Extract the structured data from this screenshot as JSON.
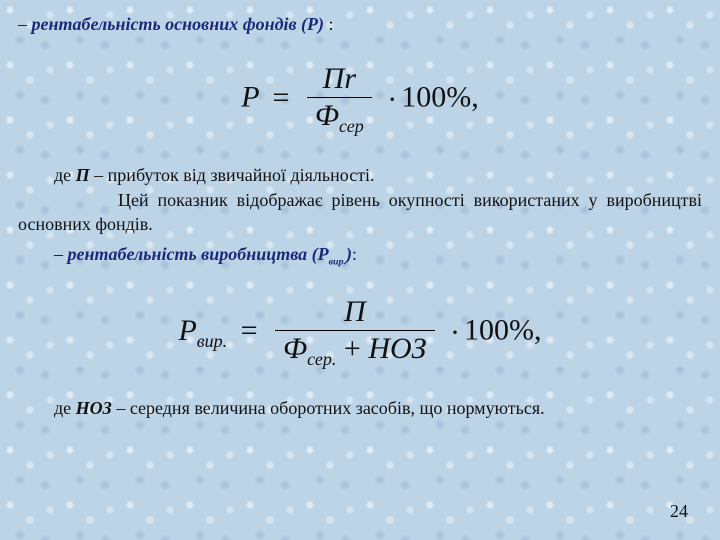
{
  "background_color": "#bcd4e6",
  "text_color": "#111111",
  "heading_color": "#1a2a7a",
  "font_family": "Times New Roman",
  "body_fontsize_pt": 14,
  "formula_fontsize_pt": 22,
  "page_number": "24",
  "section1": {
    "heading_prefix": "– ",
    "heading_text": "рентабельність основних фондів (Р)",
    "heading_colon": " :",
    "formula": {
      "lhs": "P",
      "numerator": "Пr",
      "denominator_main": "Ф",
      "denominator_sub": "сер",
      "multiplier": "100%,",
      "dot": "·"
    },
    "desc_line1_pre": "де ",
    "desc_line1_bold": "П",
    "desc_line1_post": " – прибуток від звичайної діяльності.",
    "desc_para": "Цей показник відображає рівень окупності використаних у виробництві основних фондів."
  },
  "section2": {
    "heading_prefix": "– ",
    "heading_text_part1": "рентабельність виробництва (Р",
    "heading_text_sub": "вир.",
    "heading_text_part2": ")",
    "heading_colon": ":",
    "formula": {
      "lhs_main": "P",
      "lhs_sub": "вир.",
      "numerator": "П",
      "den_part1_main": "Ф",
      "den_part1_sub": "сер.",
      "den_plus": "+",
      "den_part2": "НОЗ",
      "multiplier": "100%,",
      "dot": "·"
    },
    "desc_pre": "де ",
    "desc_bold": "НОЗ",
    "desc_post": " – середня величина оборотних засобів, що нормуються."
  }
}
